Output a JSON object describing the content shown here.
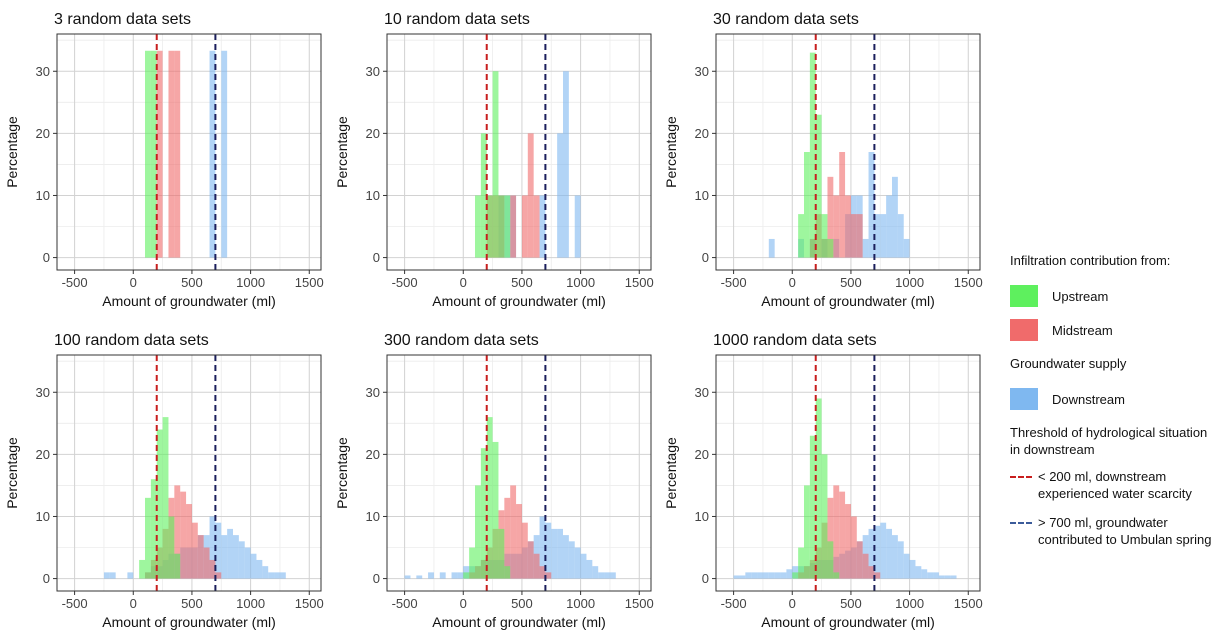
{
  "colors": {
    "upstream": "#5ef05e",
    "midstream": "#f06b6b",
    "downstream": "#7fb8f0",
    "thr200": "#c81e1e",
    "thr700": "#1b1f5c"
  },
  "chart_data": [
    {
      "type": "bar",
      "title": "3 random data sets",
      "xlabel": "Amount of groundwater (ml)",
      "ylabel": "Percentage",
      "xlim": [
        -650,
        1600
      ],
      "ylim": [
        -2,
        36
      ],
      "xticks": [
        -500,
        0,
        500,
        1000,
        1500
      ],
      "yticks": [
        0,
        10,
        20,
        30
      ],
      "binwidth": 50,
      "series": [
        {
          "name": "Upstream",
          "bins": [
            [
              100,
              33.3
            ],
            [
              150,
              33.3
            ]
          ]
        },
        {
          "name": "Midstream",
          "bins": [
            [
              200,
              33.3
            ],
            [
              300,
              33.3
            ],
            [
              350,
              33.3
            ]
          ]
        },
        {
          "name": "Downstream",
          "bins": [
            [
              650,
              33.3
            ],
            [
              750,
              33.3
            ]
          ]
        }
      ],
      "thresholds": [
        200,
        700
      ]
    },
    {
      "type": "bar",
      "title": "10 random data sets",
      "xlabel": "Amount of groundwater (ml)",
      "ylabel": "Percentage",
      "xlim": [
        -650,
        1600
      ],
      "ylim": [
        -2,
        36
      ],
      "xticks": [
        -500,
        0,
        500,
        1000,
        1500
      ],
      "yticks": [
        0,
        10,
        20,
        30
      ],
      "binwidth": 50,
      "series": [
        {
          "name": "Upstream",
          "bins": [
            [
              100,
              10
            ],
            [
              150,
              20
            ],
            [
              200,
              10
            ],
            [
              250,
              30
            ],
            [
              300,
              10
            ],
            [
              350,
              10
            ]
          ]
        },
        {
          "name": "Midstream",
          "bins": [
            [
              200,
              10
            ],
            [
              250,
              10
            ],
            [
              300,
              10
            ],
            [
              400,
              10
            ],
            [
              500,
              10
            ],
            [
              550,
              20
            ],
            [
              600,
              10
            ]
          ]
        },
        {
          "name": "Downstream",
          "bins": [
            [
              300,
              10
            ],
            [
              350,
              10
            ],
            [
              400,
              10
            ],
            [
              650,
              10
            ],
            [
              800,
              20
            ],
            [
              850,
              30
            ],
            [
              950,
              10
            ]
          ]
        }
      ],
      "thresholds": [
        200,
        700
      ]
    },
    {
      "type": "bar",
      "title": "30 random data sets",
      "xlabel": "Amount of groundwater (ml)",
      "ylabel": "Percentage",
      "xlim": [
        -650,
        1600
      ],
      "ylim": [
        -2,
        36
      ],
      "xticks": [
        -500,
        0,
        500,
        1000,
        1500
      ],
      "yticks": [
        0,
        10,
        20,
        30
      ],
      "binwidth": 50,
      "series": [
        {
          "name": "Upstream",
          "bins": [
            [
              50,
              7
            ],
            [
              100,
              17
            ],
            [
              150,
              33
            ],
            [
              200,
              23
            ],
            [
              250,
              7
            ],
            [
              300,
              3
            ]
          ]
        },
        {
          "name": "Midstream",
          "bins": [
            [
              150,
              3
            ],
            [
              200,
              7
            ],
            [
              250,
              3
            ],
            [
              300,
              13
            ],
            [
              350,
              10
            ],
            [
              400,
              17
            ],
            [
              450,
              10
            ],
            [
              500,
              7
            ],
            [
              550,
              7
            ]
          ]
        },
        {
          "name": "Downstream",
          "bins": [
            [
              -200,
              3
            ],
            [
              50,
              3
            ],
            [
              150,
              3
            ],
            [
              250,
              3
            ],
            [
              350,
              3
            ],
            [
              450,
              7
            ],
            [
              500,
              10
            ],
            [
              550,
              10
            ],
            [
              600,
              3
            ],
            [
              650,
              17
            ],
            [
              700,
              7
            ],
            [
              750,
              7
            ],
            [
              800,
              10
            ],
            [
              850,
              13
            ],
            [
              900,
              7
            ],
            [
              950,
              3
            ]
          ]
        }
      ],
      "thresholds": [
        200,
        700
      ]
    },
    {
      "type": "bar",
      "title": "100 random data sets",
      "xlabel": "Amount of groundwater (ml)",
      "ylabel": "Percentage",
      "xlim": [
        -650,
        1600
      ],
      "ylim": [
        -2,
        36
      ],
      "xticks": [
        -500,
        0,
        500,
        1000,
        1500
      ],
      "yticks": [
        0,
        10,
        20,
        30
      ],
      "binwidth": 50,
      "series": [
        {
          "name": "Upstream",
          "bins": [
            [
              50,
              3
            ],
            [
              100,
              13
            ],
            [
              150,
              16
            ],
            [
              200,
              24
            ],
            [
              250,
              26
            ],
            [
              300,
              10
            ],
            [
              350,
              4
            ]
          ]
        },
        {
          "name": "Midstream",
          "bins": [
            [
              100,
              1
            ],
            [
              150,
              3
            ],
            [
              200,
              5
            ],
            [
              250,
              8
            ],
            [
              300,
              13
            ],
            [
              350,
              15
            ],
            [
              400,
              14
            ],
            [
              450,
              12
            ],
            [
              500,
              9
            ],
            [
              550,
              7
            ],
            [
              600,
              5
            ],
            [
              650,
              3
            ],
            [
              700,
              1
            ]
          ]
        },
        {
          "name": "Downstream",
          "bins": [
            [
              -250,
              1
            ],
            [
              -200,
              1
            ],
            [
              -50,
              1
            ],
            [
              100,
              1
            ],
            [
              150,
              2
            ],
            [
              200,
              2
            ],
            [
              250,
              3
            ],
            [
              300,
              4
            ],
            [
              350,
              4
            ],
            [
              400,
              5
            ],
            [
              450,
              5
            ],
            [
              500,
              5
            ],
            [
              550,
              7
            ],
            [
              600,
              7
            ],
            [
              650,
              10
            ],
            [
              700,
              9
            ],
            [
              750,
              7
            ],
            [
              800,
              8
            ],
            [
              850,
              7
            ],
            [
              900,
              6
            ],
            [
              950,
              5
            ],
            [
              1000,
              4
            ],
            [
              1050,
              3
            ],
            [
              1100,
              2
            ],
            [
              1150,
              1
            ],
            [
              1200,
              1
            ],
            [
              1250,
              1
            ]
          ]
        }
      ],
      "thresholds": [
        200,
        700
      ]
    },
    {
      "type": "bar",
      "title": "300 random data sets",
      "xlabel": "Amount of groundwater (ml)",
      "ylabel": "Percentage",
      "xlim": [
        -650,
        1600
      ],
      "ylim": [
        -2,
        36
      ],
      "xticks": [
        -500,
        0,
        500,
        1000,
        1500
      ],
      "yticks": [
        0,
        10,
        20,
        30
      ],
      "binwidth": 50,
      "series": [
        {
          "name": "Upstream",
          "bins": [
            [
              0,
              1
            ],
            [
              50,
              5
            ],
            [
              100,
              15
            ],
            [
              150,
              21
            ],
            [
              200,
              26
            ],
            [
              250,
              22
            ],
            [
              300,
              8
            ],
            [
              350,
              2
            ]
          ]
        },
        {
          "name": "Midstream",
          "bins": [
            [
              50,
              1
            ],
            [
              100,
              2
            ],
            [
              150,
              3
            ],
            [
              200,
              5
            ],
            [
              250,
              8
            ],
            [
              300,
              11
            ],
            [
              350,
              13
            ],
            [
              400,
              15
            ],
            [
              450,
              12
            ],
            [
              500,
              9
            ],
            [
              550,
              6
            ],
            [
              600,
              4
            ],
            [
              650,
              2
            ],
            [
              700,
              1
            ]
          ]
        },
        {
          "name": "Downstream",
          "bins": [
            [
              -500,
              0.5
            ],
            [
              -400,
              0.5
            ],
            [
              -300,
              1
            ],
            [
              -200,
              1
            ],
            [
              -100,
              1
            ],
            [
              -50,
              1
            ],
            [
              0,
              2
            ],
            [
              50,
              2
            ],
            [
              100,
              2
            ],
            [
              150,
              3
            ],
            [
              200,
              3
            ],
            [
              250,
              3
            ],
            [
              300,
              3
            ],
            [
              350,
              4
            ],
            [
              400,
              4
            ],
            [
              450,
              4
            ],
            [
              500,
              5
            ],
            [
              550,
              6
            ],
            [
              600,
              7
            ],
            [
              650,
              10
            ],
            [
              700,
              9
            ],
            [
              750,
              8
            ],
            [
              800,
              8
            ],
            [
              850,
              7
            ],
            [
              900,
              6
            ],
            [
              950,
              5
            ],
            [
              1000,
              4
            ],
            [
              1050,
              3
            ],
            [
              1100,
              2
            ],
            [
              1150,
              1
            ],
            [
              1200,
              1
            ],
            [
              1250,
              1
            ]
          ]
        }
      ],
      "thresholds": [
        200,
        700
      ]
    },
    {
      "type": "bar",
      "title": "1000 random data sets",
      "xlabel": "Amount of groundwater (ml)",
      "ylabel": "Percentage",
      "xlim": [
        -650,
        1600
      ],
      "ylim": [
        -2,
        36
      ],
      "xticks": [
        -500,
        0,
        500,
        1000,
        1500
      ],
      "yticks": [
        0,
        10,
        20,
        30
      ],
      "binwidth": 50,
      "series": [
        {
          "name": "Upstream",
          "bins": [
            [
              0,
              1
            ],
            [
              50,
              5
            ],
            [
              100,
              15
            ],
            [
              150,
              23
            ],
            [
              200,
              29
            ],
            [
              250,
              20
            ],
            [
              300,
              6
            ],
            [
              350,
              1
            ]
          ]
        },
        {
          "name": "Midstream",
          "bins": [
            [
              50,
              1
            ],
            [
              100,
              2
            ],
            [
              150,
              3
            ],
            [
              200,
              5
            ],
            [
              250,
              9
            ],
            [
              300,
              13
            ],
            [
              350,
              15
            ],
            [
              400,
              14
            ],
            [
              450,
              12
            ],
            [
              500,
              10
            ],
            [
              550,
              6
            ],
            [
              600,
              4
            ],
            [
              650,
              2
            ],
            [
              700,
              1
            ]
          ]
        },
        {
          "name": "Downstream",
          "bins": [
            [
              -500,
              0.5
            ],
            [
              -450,
              0.5
            ],
            [
              -400,
              1
            ],
            [
              -350,
              1
            ],
            [
              -300,
              1
            ],
            [
              -250,
              1
            ],
            [
              -200,
              1
            ],
            [
              -150,
              1
            ],
            [
              -100,
              1
            ],
            [
              -50,
              1.5
            ],
            [
              0,
              2
            ],
            [
              50,
              2
            ],
            [
              100,
              2
            ],
            [
              150,
              2.5
            ],
            [
              200,
              3
            ],
            [
              250,
              3
            ],
            [
              300,
              3
            ],
            [
              350,
              3.5
            ],
            [
              400,
              4
            ],
            [
              450,
              4.5
            ],
            [
              500,
              5
            ],
            [
              550,
              6
            ],
            [
              600,
              7
            ],
            [
              650,
              8
            ],
            [
              700,
              8.5
            ],
            [
              750,
              9
            ],
            [
              800,
              8
            ],
            [
              850,
              7
            ],
            [
              900,
              6
            ],
            [
              950,
              4
            ],
            [
              1000,
              3
            ],
            [
              1050,
              2
            ],
            [
              1100,
              1.5
            ],
            [
              1150,
              1
            ],
            [
              1200,
              1
            ],
            [
              1250,
              0.5
            ],
            [
              1300,
              0.5
            ],
            [
              1350,
              0.5
            ]
          ]
        }
      ],
      "thresholds": [
        200,
        700
      ]
    }
  ],
  "legend": {
    "fill_title": "Infiltration contribution from:",
    "upstream": "Upstream",
    "midstream": "Midstream",
    "supply_title": "Groundwater supply",
    "downstream": "Downstream",
    "threshold_title": "Threshold of hydrological situation in downstream",
    "thr200_label": "< 200 ml, downstream experienced water scarcity",
    "thr700_label": "> 700 ml, groundwater contributed to Umbulan spring"
  }
}
